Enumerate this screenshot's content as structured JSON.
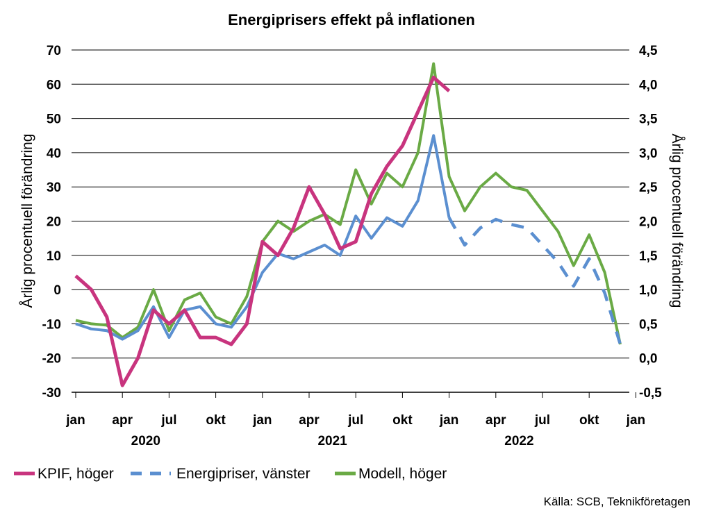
{
  "chart_data": {
    "type": "line",
    "title": "Energiprisers effekt på inflationen",
    "ylabel_left": "Årlig procentuell förändring",
    "ylabel_right": "Årlig procentuell förändring",
    "source": "Källa: SCB, Teknikföretagen",
    "y_left": {
      "range": [
        -30,
        70
      ],
      "ticks": [
        "-30",
        "-20",
        "-10",
        "0",
        "10",
        "20",
        "30",
        "40",
        "50",
        "60",
        "70"
      ]
    },
    "y_right": {
      "range": [
        -0.5,
        4.5
      ],
      "ticks": [
        "-0,5",
        "0,0",
        "0,5",
        "1,0",
        "1,5",
        "2,0",
        "2,5",
        "3,0",
        "3,5",
        "4,0",
        "4,5"
      ]
    },
    "x_month_labels": [
      "jan",
      "apr",
      "jul",
      "okt",
      "jan",
      "apr",
      "jul",
      "okt",
      "jan",
      "apr",
      "jul",
      "okt",
      "jan"
    ],
    "x_year_labels": [
      "2020",
      "2021",
      "2022"
    ],
    "grid": "horizontal",
    "legend_position": "bottom",
    "series": [
      {
        "name": "KPIF, höger",
        "axis": "right",
        "color": "#c8347e",
        "dashed": false,
        "x": [
          "2020-01",
          "2020-02",
          "2020-03",
          "2020-04",
          "2020-05",
          "2020-06",
          "2020-07",
          "2020-08",
          "2020-09",
          "2020-10",
          "2020-11",
          "2020-12",
          "2021-01",
          "2021-02",
          "2021-03",
          "2021-04",
          "2021-05",
          "2021-06",
          "2021-07",
          "2021-08",
          "2021-09",
          "2021-10",
          "2021-11",
          "2021-12",
          "2022-01"
        ],
        "values": [
          1.2,
          1.0,
          0.6,
          -0.4,
          0.0,
          0.7,
          0.5,
          0.7,
          0.3,
          0.3,
          0.2,
          0.5,
          1.7,
          1.5,
          1.9,
          2.5,
          2.1,
          1.6,
          1.7,
          2.4,
          2.8,
          3.1,
          3.6,
          4.1,
          3.9
        ]
      },
      {
        "name": "Energipriser, vänster",
        "axis": "left",
        "color": "#5b8fd0",
        "dashed_from": "2022-01",
        "x": [
          "2020-01",
          "2020-02",
          "2020-03",
          "2020-04",
          "2020-05",
          "2020-06",
          "2020-07",
          "2020-08",
          "2020-09",
          "2020-10",
          "2020-11",
          "2020-12",
          "2021-01",
          "2021-02",
          "2021-03",
          "2021-04",
          "2021-05",
          "2021-06",
          "2021-07",
          "2021-08",
          "2021-09",
          "2021-10",
          "2021-11",
          "2021-12",
          "2022-01",
          "2022-02",
          "2022-03",
          "2022-04",
          "2022-05",
          "2022-06",
          "2022-07",
          "2022-08",
          "2022-09",
          "2022-10",
          "2022-11",
          "2022-12"
        ],
        "values": [
          -10,
          -11.5,
          -12,
          -14.5,
          -12,
          -5,
          -14,
          -6,
          -5,
          -10,
          -11,
          -5,
          5,
          10.5,
          9,
          11,
          13,
          10,
          21.5,
          15,
          21,
          18.5,
          26,
          45,
          21,
          13,
          18,
          20.5,
          19,
          18,
          13,
          8,
          1,
          9,
          -1,
          -16
        ]
      },
      {
        "name": "Modell, höger",
        "axis": "right",
        "color": "#6aaa45",
        "dashed": false,
        "x": [
          "2020-01",
          "2020-02",
          "2020-03",
          "2020-04",
          "2020-05",
          "2020-06",
          "2020-07",
          "2020-08",
          "2020-09",
          "2020-10",
          "2020-11",
          "2020-12",
          "2021-01",
          "2021-02",
          "2021-03",
          "2021-04",
          "2021-05",
          "2021-06",
          "2021-07",
          "2021-08",
          "2021-09",
          "2021-10",
          "2021-11",
          "2021-12",
          "2022-01",
          "2022-02",
          "2022-03",
          "2022-04",
          "2022-05",
          "2022-06",
          "2022-07",
          "2022-08",
          "2022-09",
          "2022-10",
          "2022-11",
          "2022-12"
        ],
        "values": [
          0.55,
          0.5,
          0.48,
          0.3,
          0.45,
          1.0,
          0.4,
          0.85,
          0.95,
          0.6,
          0.5,
          0.9,
          1.7,
          2.0,
          1.85,
          2.0,
          2.1,
          1.95,
          2.75,
          2.25,
          2.7,
          2.5,
          3.0,
          4.3,
          2.65,
          2.15,
          2.5,
          2.7,
          2.5,
          2.45,
          2.15,
          1.85,
          1.35,
          1.8,
          1.25,
          0.2
        ]
      }
    ]
  }
}
